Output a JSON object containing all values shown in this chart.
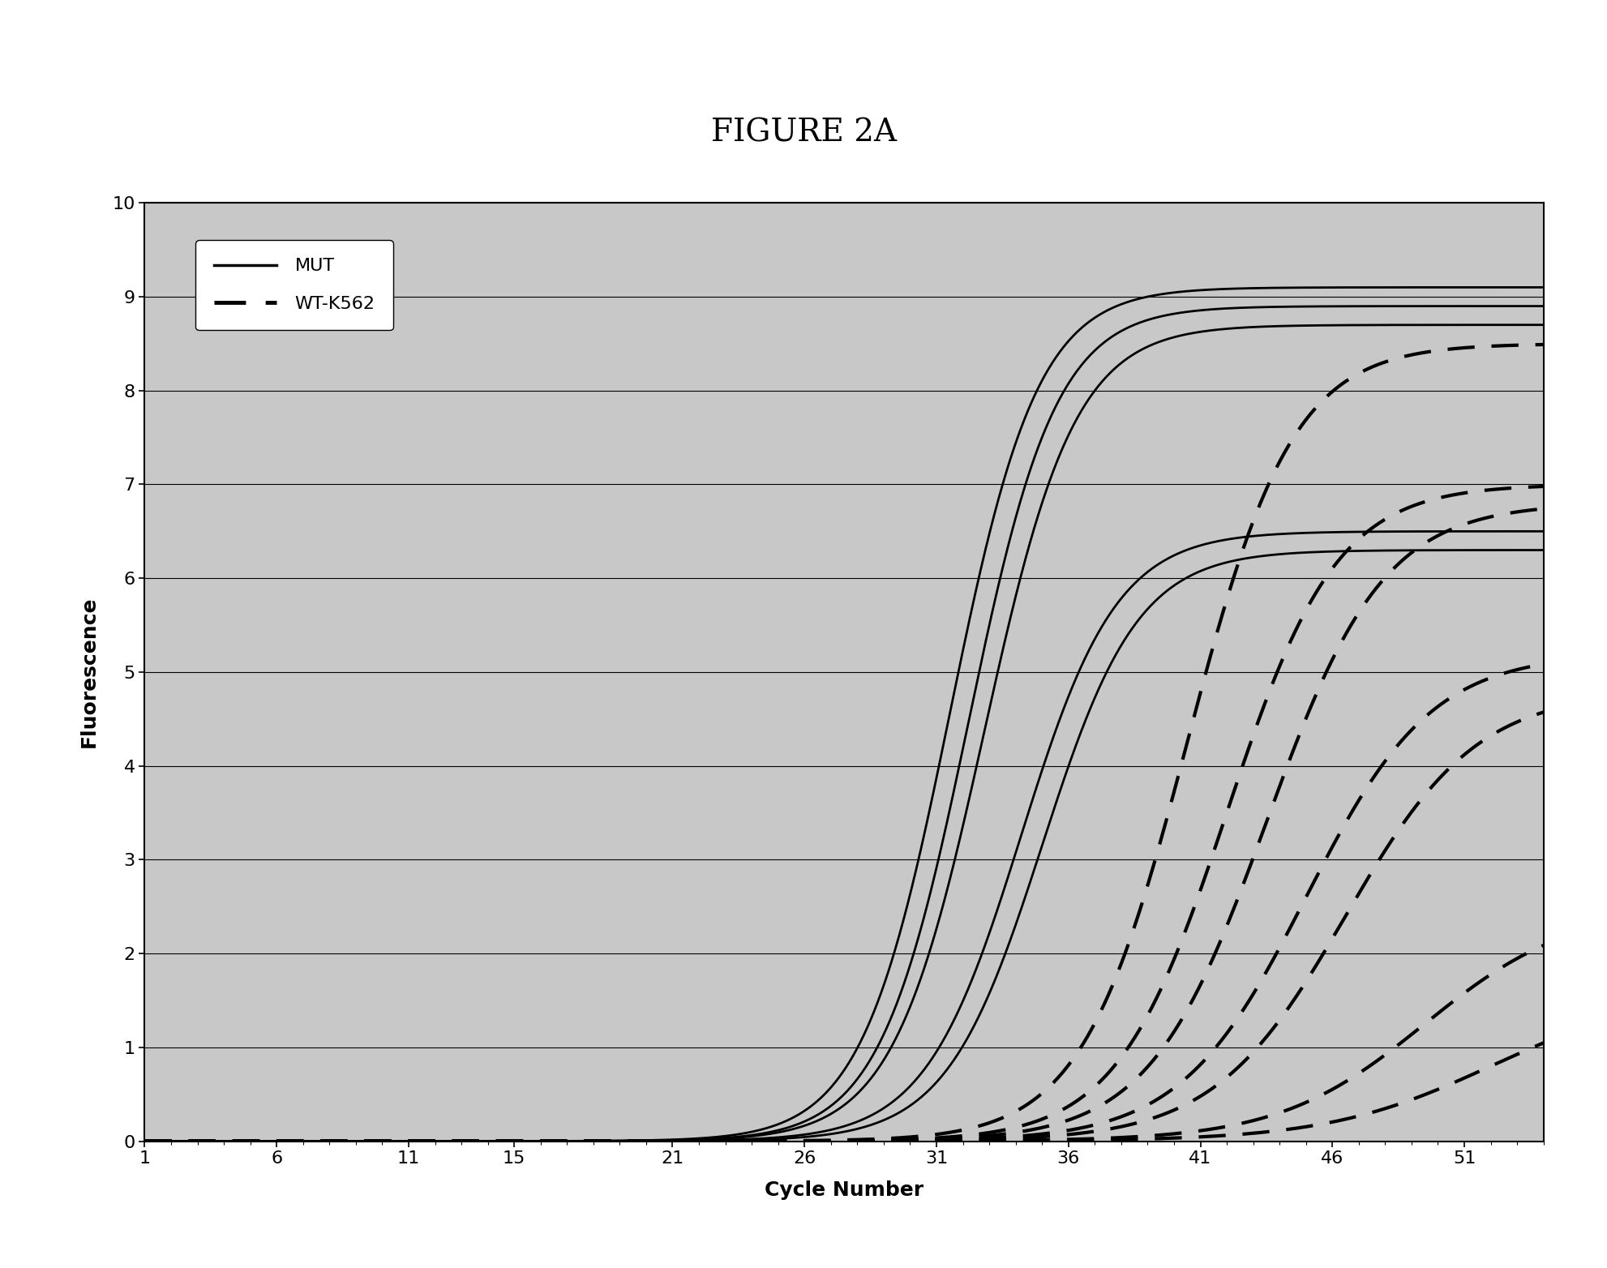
{
  "title": "FIGURE 2A",
  "xlabel": "Cycle Number",
  "ylabel": "Fluorescence",
  "xlim": [
    1,
    54
  ],
  "ylim": [
    0,
    10
  ],
  "xticks": [
    1,
    6,
    11,
    15,
    21,
    26,
    31,
    36,
    41,
    46,
    51
  ],
  "yticks": [
    0,
    1,
    2,
    3,
    4,
    5,
    6,
    7,
    8,
    9,
    10
  ],
  "plot_bg": "#c8c8c8",
  "outer_bg": "#ffffff",
  "mut_curves": [
    {
      "L": 9.1,
      "k": 0.6,
      "x0": 31.5
    },
    {
      "L": 8.9,
      "k": 0.6,
      "x0": 32.2
    },
    {
      "L": 8.7,
      "k": 0.58,
      "x0": 32.8
    },
    {
      "L": 6.5,
      "k": 0.55,
      "x0": 34.2
    },
    {
      "L": 6.3,
      "k": 0.55,
      "x0": 35.0
    }
  ],
  "wt_curves": [
    {
      "L": 8.5,
      "k": 0.5,
      "x0": 40.5
    },
    {
      "L": 7.0,
      "k": 0.48,
      "x0": 42.0
    },
    {
      "L": 6.8,
      "k": 0.45,
      "x0": 43.5
    },
    {
      "L": 5.2,
      "k": 0.42,
      "x0": 45.0
    },
    {
      "L": 4.8,
      "k": 0.4,
      "x0": 46.5
    },
    {
      "L": 2.5,
      "k": 0.36,
      "x0": 49.5
    },
    {
      "L": 1.6,
      "k": 0.32,
      "x0": 52.0
    }
  ],
  "line_color": "#000000",
  "lw_mut": 2.0,
  "lw_wt": 3.0,
  "title_fontsize": 28,
  "label_fontsize": 18,
  "tick_fontsize": 16,
  "legend_fontsize": 16
}
